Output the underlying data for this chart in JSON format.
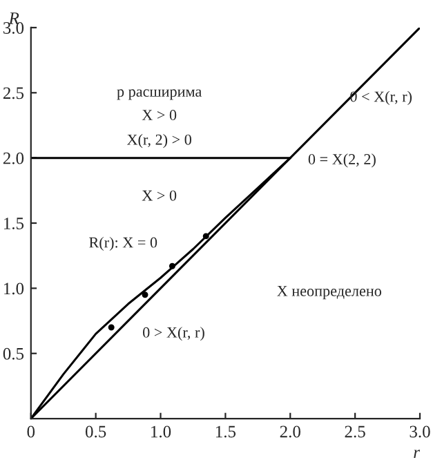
{
  "chart_data": {
    "type": "line",
    "xlabel": "r",
    "ylabel": "R",
    "xlim": [
      0,
      3
    ],
    "ylim": [
      0,
      3
    ],
    "xticks": [
      0,
      0.5,
      {
        "value": 1,
        "label": "1.0"
      },
      1.5,
      {
        "value": 2,
        "label": "2.0"
      },
      2.5,
      {
        "value": 3,
        "label": "3.0"
      }
    ],
    "yticks": [
      0.5,
      {
        "value": 1,
        "label": "1.0"
      },
      1.5,
      {
        "value": 2,
        "label": "2.0"
      },
      2.5,
      {
        "value": 3,
        "label": "3.0"
      }
    ],
    "grid": false,
    "marker": "none",
    "line_style": "solid",
    "series": [
      {
        "color": "#000000",
        "x": [
          0,
          3
        ],
        "values": [
          0,
          3
        ]
      },
      {
        "color": "#000000",
        "x": [
          0,
          0.25,
          0.5,
          0.75,
          1,
          1.25,
          1.5,
          1.75,
          2
        ],
        "values": [
          0,
          0.34,
          0.65,
          0.88,
          1.08,
          1.3,
          1.54,
          1.77,
          2
        ]
      },
      {
        "color": "#000000",
        "x": [
          0,
          2
        ],
        "values": [
          2,
          2
        ]
      },
      {
        "type": "scatter",
        "marker": "circle",
        "color": "#000000",
        "x": [
          0.62,
          0.88,
          1.09,
          1.35
        ],
        "values": [
          0.7,
          0.95,
          1.17,
          1.4
        ]
      }
    ],
    "annotations": [
      "p расширима",
      "X > 0",
      "X(r, 2) > 0",
      "X > 0",
      "R(r): X = 0",
      "0 = X(2, 2)",
      "0 < X(r, r)",
      "X неопределено",
      "0 > X(r, r)"
    ]
  }
}
